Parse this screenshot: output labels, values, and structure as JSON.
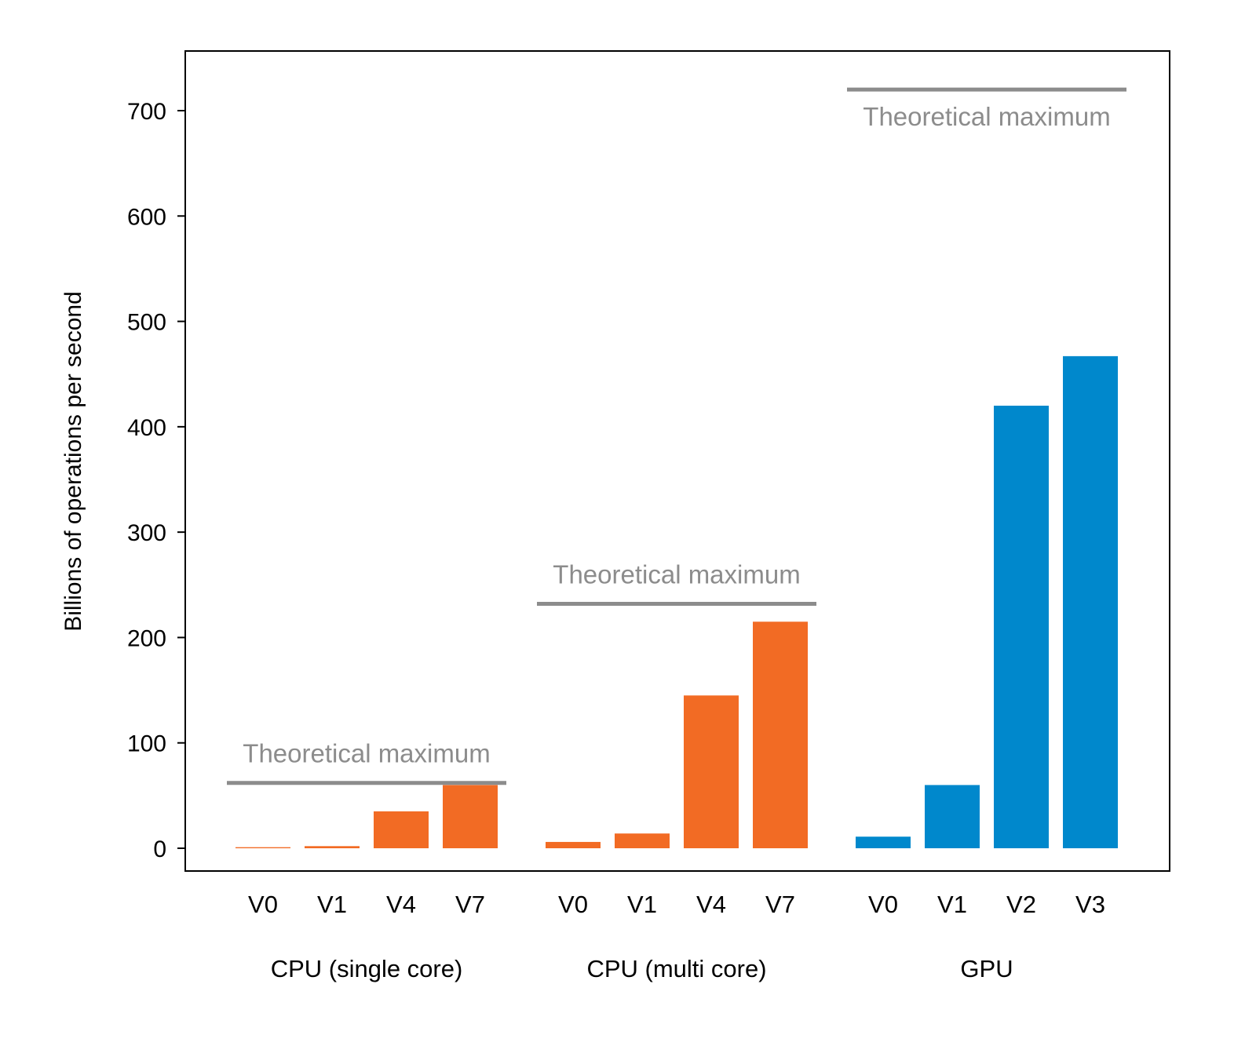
{
  "chart_data": {
    "type": "bar",
    "ylabel": "Billions of operations per second",
    "xlabel": "",
    "ylim": [
      -22,
      755
    ],
    "yticks": [
      0,
      100,
      200,
      300,
      400,
      500,
      600,
      700
    ],
    "grid": false,
    "groups": [
      {
        "name": "CPU (single core)",
        "color": "#f26b24",
        "categories": [
          "V0",
          "V1",
          "V4",
          "V7"
        ],
        "values": [
          1,
          2,
          35,
          60
        ],
        "theoretical_max": 62,
        "max_label": "Theoretical maximum"
      },
      {
        "name": "CPU (multi core)",
        "color": "#f26b24",
        "categories": [
          "V0",
          "V1",
          "V4",
          "V7"
        ],
        "values": [
          6,
          14,
          145,
          215
        ],
        "theoretical_max": 232,
        "max_label": "Theoretical maximum"
      },
      {
        "name": "GPU",
        "color": "#0088cc",
        "categories": [
          "V0",
          "V1",
          "V2",
          "V3"
        ],
        "values": [
          11,
          60,
          420,
          467
        ],
        "theoretical_max": 720,
        "max_label": "Theoretical maximum"
      }
    ],
    "max_line_color": "#8c8c8c"
  }
}
